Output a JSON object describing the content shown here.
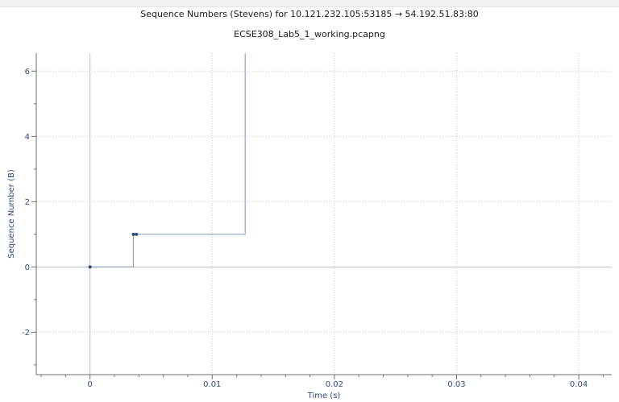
{
  "chart_data": {
    "type": "line",
    "title": "Sequence Numbers (Stevens) for 10.121.232.105:53185 → 54.192.51.83:80",
    "subtitle": "ECSE308_Lab5_1_working.pcapng",
    "xlabel": "Time (s)",
    "ylabel": "Sequence Number (B)",
    "xlim": [
      -0.0044,
      0.0427
    ],
    "ylim": [
      -3.3,
      6.55
    ],
    "x_ticks": [
      0,
      0.01,
      0.02,
      0.03,
      0.04
    ],
    "x_tick_labels": [
      "0",
      "0.01",
      "0.02",
      "0.03",
      "0.04"
    ],
    "y_ticks": [
      -2,
      0,
      2,
      4,
      6
    ],
    "y_tick_labels": [
      "-2",
      "0",
      "2",
      "4",
      "6"
    ],
    "grid": true,
    "series": [
      {
        "color": "#8fa4bd",
        "step_x": [
          0,
          0.00355,
          0.00355,
          0.0127,
          0.0127
        ],
        "step_y": [
          0,
          0,
          1,
          1,
          6.55
        ],
        "points": [
          {
            "x": 0,
            "y": 0
          },
          {
            "x": 0.00355,
            "y": 1
          },
          {
            "x": 0.0038,
            "y": 1
          }
        ]
      }
    ]
  }
}
